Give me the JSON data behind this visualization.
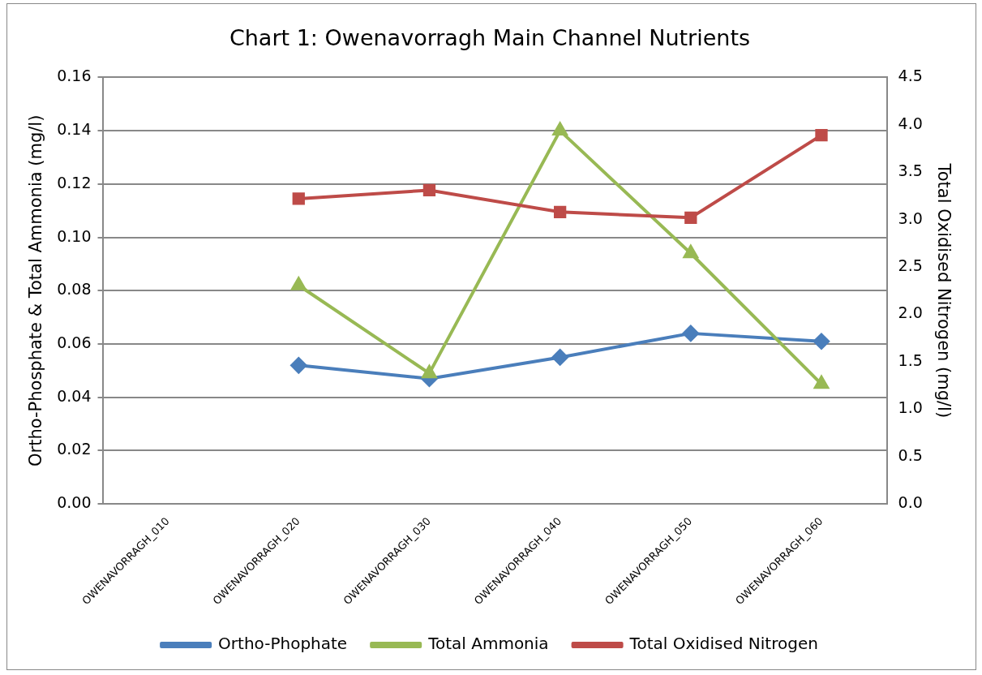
{
  "chart_data": {
    "type": "line",
    "title": "Chart 1: Owenavorragh Main Channel Nutrients",
    "ylabel": "Ortho-Phosphate & Total Ammonia (mg/l)",
    "y2label": "Total Oxidised Nitrogen (mg/l)",
    "categories": [
      "OWENAVORRAGH_010",
      "OWENAVORRAGH_020",
      "OWENAVORRAGH_030",
      "OWENAVORRAGH_040",
      "OWENAVORRAGH_050",
      "OWENAVORRAGH_060"
    ],
    "series": [
      {
        "name": "Ortho-Phophate",
        "color": "#4a7ebb",
        "marker": "diamond",
        "values": [
          null,
          0.052,
          0.047,
          0.055,
          0.064,
          0.061
        ]
      },
      {
        "name": "Total Ammonia",
        "color": "#98b954",
        "marker": "triangle",
        "values": [
          null,
          0.082,
          0.049,
          0.14,
          0.094,
          0.045
        ]
      },
      {
        "name": "Total Oxidised Nitrogen",
        "color": "#be4b48",
        "marker": "square",
        "axis": "y2",
        "values": [
          null,
          3.22,
          3.31,
          3.08,
          3.02,
          3.89
        ]
      }
    ],
    "ylim": [
      0,
      0.16
    ],
    "yticks": [
      {
        "value": 0,
        "label": "0.00"
      },
      {
        "value": 0.02,
        "label": "0.02"
      },
      {
        "value": 0.04,
        "label": "0.04"
      },
      {
        "value": 0.06,
        "label": "0.06"
      },
      {
        "value": 0.08,
        "label": "0.08"
      },
      {
        "value": 0.1,
        "label": "0.10"
      },
      {
        "value": 0.12,
        "label": "0.12"
      },
      {
        "value": 0.14,
        "label": "0.14"
      },
      {
        "value": 0.16,
        "label": "0.16"
      }
    ],
    "y2lim": [
      0,
      4.5
    ],
    "y2ticks": [
      {
        "value": 0,
        "label": "0.0"
      },
      {
        "value": 0.5,
        "label": "0.5"
      },
      {
        "value": 1,
        "label": "1.0"
      },
      {
        "value": 1.5,
        "label": "1.5"
      },
      {
        "value": 2,
        "label": "2.0"
      },
      {
        "value": 2.5,
        "label": "2.5"
      },
      {
        "value": 3,
        "label": "3.0"
      },
      {
        "value": 3.5,
        "label": "3.5"
      },
      {
        "value": 4,
        "label": "4.0"
      },
      {
        "value": 4.5,
        "label": "4.5"
      }
    ],
    "grid": "y",
    "legend": "bottom",
    "line_style": "solid"
  }
}
